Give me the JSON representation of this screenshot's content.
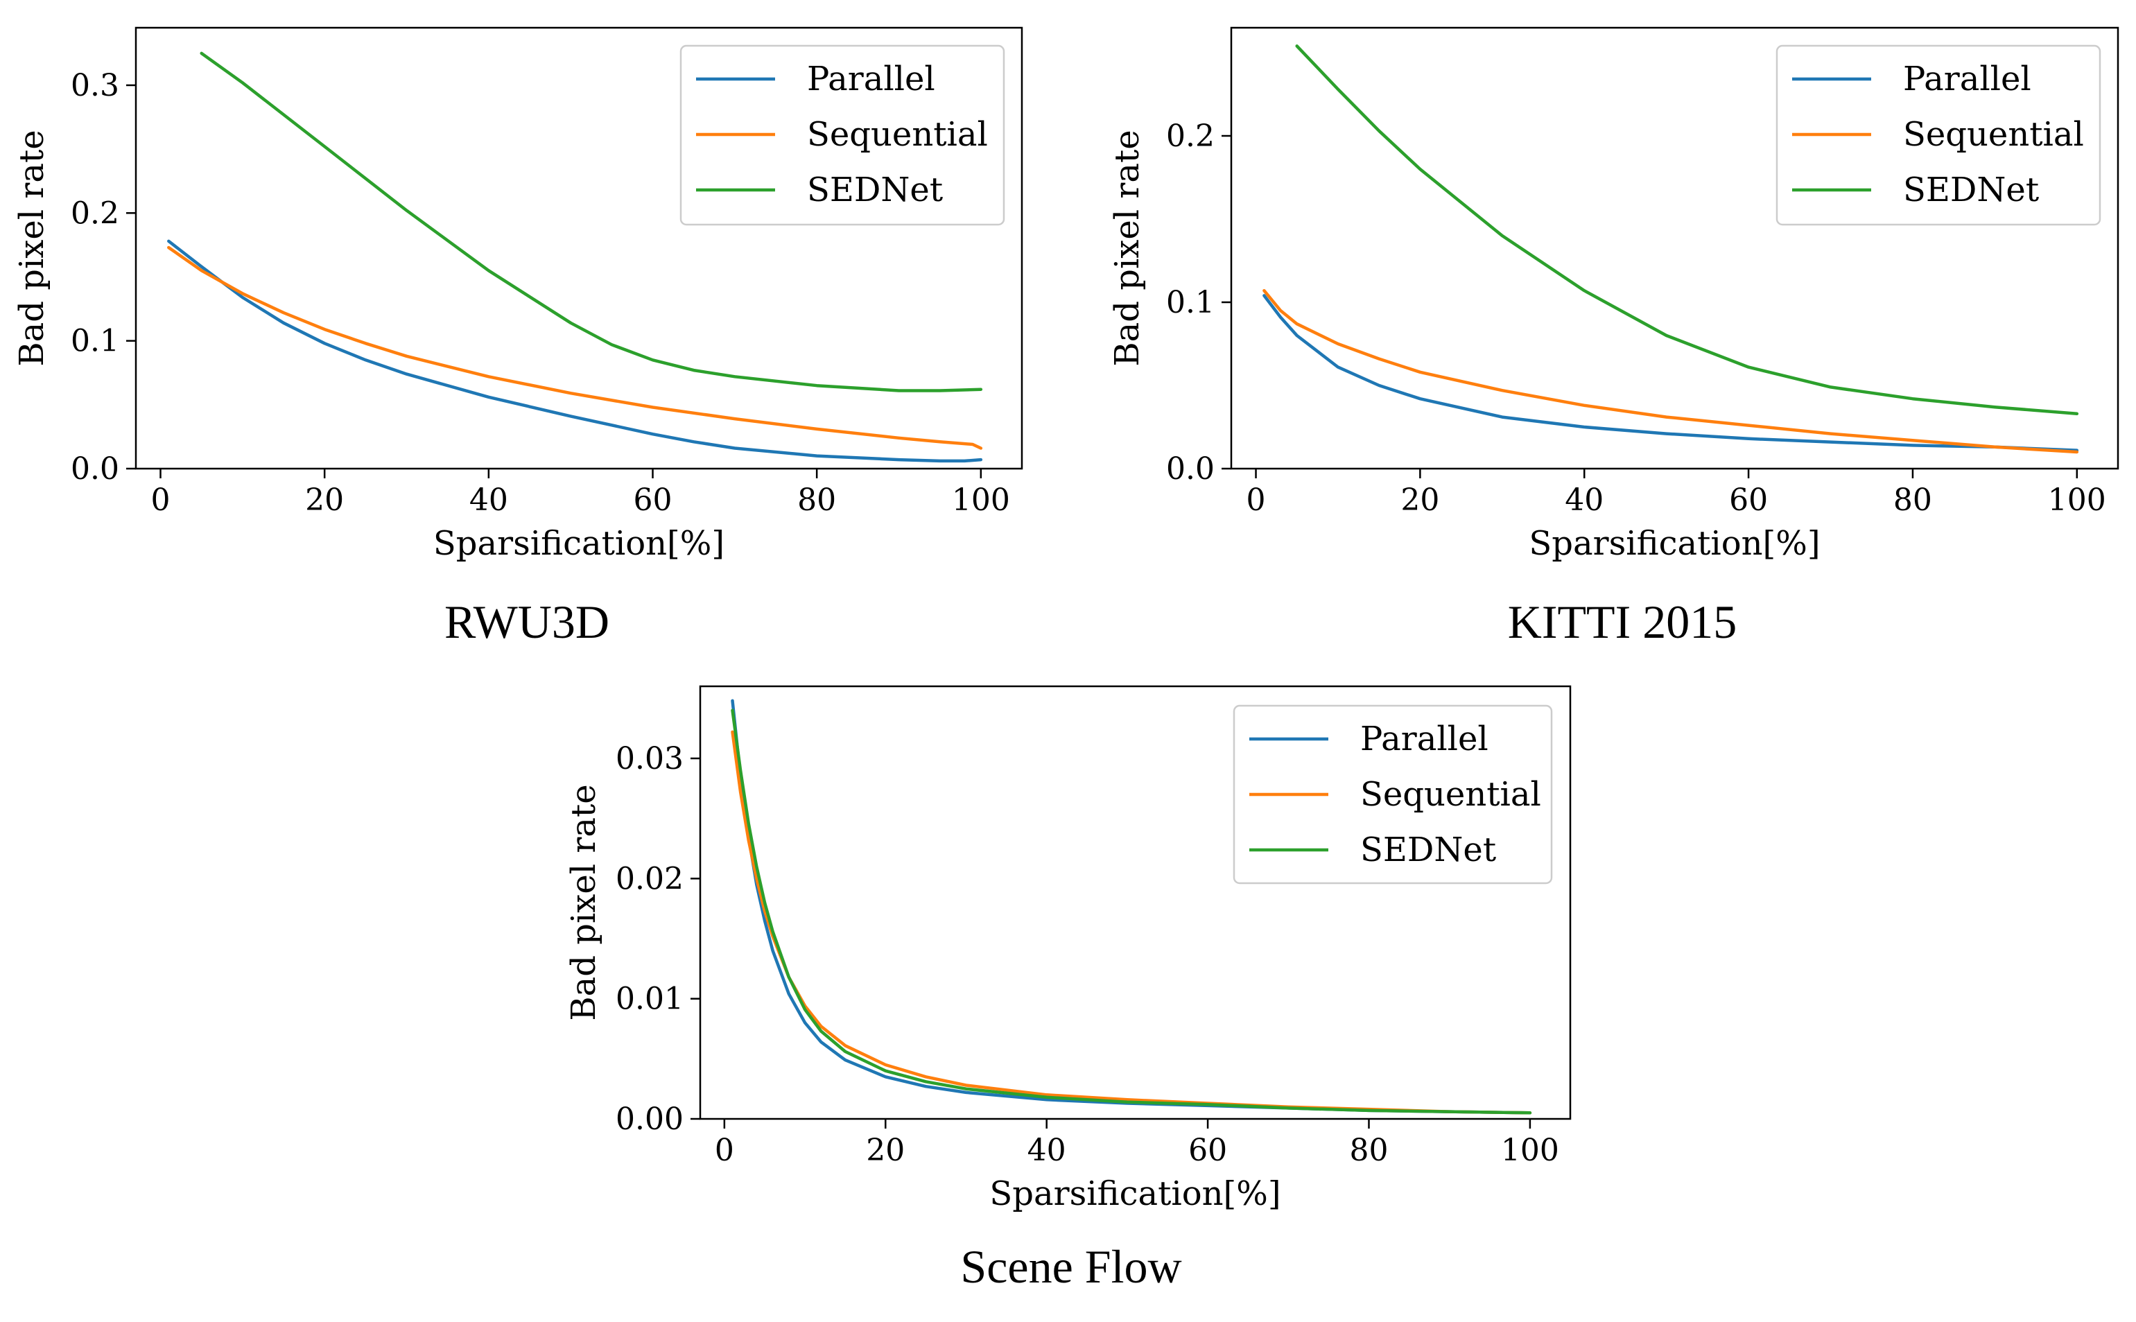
{
  "colors": {
    "Parallel": "#1f77b4",
    "Sequential": "#ff7f0e",
    "SEDNet": "#2ca02c"
  },
  "chart_data": [
    {
      "type": "line",
      "caption": "RWU3D",
      "xlabel": "Sparsification[%]",
      "ylabel": "Bad pixel rate",
      "xlim": [
        -3,
        105
      ],
      "ylim": [
        0,
        0.345
      ],
      "xticks": [
        0,
        20,
        40,
        60,
        80,
        100
      ],
      "xtick_labels": [
        "0",
        "20",
        "40",
        "60",
        "80",
        "100"
      ],
      "yticks": [
        0,
        0.1,
        0.2,
        0.3
      ],
      "ytick_labels": [
        "0.0",
        "0.1",
        "0.2",
        "0.3"
      ],
      "legend_position": "top-right",
      "series": [
        {
          "name": "Parallel",
          "x": [
            1,
            5,
            10,
            15,
            20,
            25,
            30,
            40,
            50,
            60,
            65,
            70,
            80,
            90,
            95,
            98,
            100
          ],
          "y": [
            0.178,
            0.158,
            0.134,
            0.114,
            0.098,
            0.085,
            0.074,
            0.056,
            0.041,
            0.027,
            0.021,
            0.016,
            0.01,
            0.007,
            0.006,
            0.006,
            0.007
          ]
        },
        {
          "name": "Sequential",
          "x": [
            1,
            5,
            10,
            15,
            20,
            25,
            30,
            40,
            50,
            60,
            70,
            80,
            90,
            95,
            99,
            100
          ],
          "y": [
            0.173,
            0.155,
            0.137,
            0.122,
            0.109,
            0.098,
            0.088,
            0.072,
            0.059,
            0.048,
            0.039,
            0.031,
            0.024,
            0.021,
            0.019,
            0.016
          ]
        },
        {
          "name": "SEDNet",
          "x": [
            5,
            10,
            20,
            30,
            40,
            50,
            55,
            60,
            65,
            70,
            80,
            90,
            95,
            100
          ],
          "y": [
            0.325,
            0.302,
            0.252,
            0.202,
            0.155,
            0.114,
            0.097,
            0.085,
            0.077,
            0.072,
            0.065,
            0.061,
            0.061,
            0.062
          ]
        }
      ]
    },
    {
      "type": "line",
      "caption": "KITTI 2015",
      "xlabel": "Sparsification[%]",
      "ylabel": "Bad pixel rate",
      "xlim": [
        -3,
        105
      ],
      "ylim": [
        0,
        0.265
      ],
      "xticks": [
        0,
        20,
        40,
        60,
        80,
        100
      ],
      "xtick_labels": [
        "0",
        "20",
        "40",
        "60",
        "80",
        "100"
      ],
      "yticks": [
        0,
        0.1,
        0.2
      ],
      "ytick_labels": [
        "0.0",
        "0.1",
        "0.2"
      ],
      "legend_position": "top-right",
      "series": [
        {
          "name": "Parallel",
          "x": [
            1,
            3,
            5,
            10,
            15,
            20,
            30,
            40,
            50,
            60,
            70,
            80,
            90,
            100
          ],
          "y": [
            0.104,
            0.091,
            0.08,
            0.061,
            0.05,
            0.042,
            0.031,
            0.025,
            0.021,
            0.018,
            0.016,
            0.014,
            0.013,
            0.011
          ]
        },
        {
          "name": "Sequential",
          "x": [
            1,
            3,
            5,
            10,
            15,
            20,
            30,
            40,
            50,
            60,
            70,
            80,
            90,
            100
          ],
          "y": [
            0.107,
            0.095,
            0.087,
            0.075,
            0.066,
            0.058,
            0.047,
            0.038,
            0.031,
            0.026,
            0.021,
            0.017,
            0.013,
            0.01
          ]
        },
        {
          "name": "SEDNet",
          "x": [
            5,
            10,
            15,
            20,
            30,
            40,
            50,
            60,
            70,
            80,
            90,
            100
          ],
          "y": [
            0.254,
            0.228,
            0.203,
            0.18,
            0.14,
            0.107,
            0.08,
            0.061,
            0.049,
            0.042,
            0.037,
            0.033
          ]
        }
      ]
    },
    {
      "type": "line",
      "caption": "Scene Flow",
      "xlabel": "Sparsification[%]",
      "ylabel": "Bad pixel rate",
      "xlim": [
        -3,
        105
      ],
      "ylim": [
        0,
        0.036
      ],
      "xticks": [
        0,
        20,
        40,
        60,
        80,
        100
      ],
      "xtick_labels": [
        "0",
        "20",
        "40",
        "60",
        "80",
        "100"
      ],
      "yticks": [
        0,
        0.01,
        0.02,
        0.03
      ],
      "ytick_labels": [
        "0.00",
        "0.01",
        "0.02",
        "0.03"
      ],
      "legend_position": "top-right",
      "series": [
        {
          "name": "Parallel",
          "x": [
            1,
            2,
            3,
            4,
            5,
            6,
            8,
            10,
            12,
            15,
            20,
            25,
            30,
            40,
            50,
            60,
            70,
            80,
            90,
            100
          ],
          "y": [
            0.0348,
            0.0285,
            0.0235,
            0.0195,
            0.0165,
            0.014,
            0.0104,
            0.008,
            0.0064,
            0.0049,
            0.0035,
            0.0027,
            0.0022,
            0.0016,
            0.0013,
            0.0011,
            0.0009,
            0.0007,
            0.0006,
            0.0005
          ]
        },
        {
          "name": "Sequential",
          "x": [
            1,
            2,
            3,
            4,
            5,
            6,
            8,
            10,
            12,
            15,
            20,
            25,
            30,
            40,
            50,
            60,
            70,
            80,
            90,
            100
          ],
          "y": [
            0.0322,
            0.0272,
            0.0232,
            0.02,
            0.0173,
            0.0152,
            0.0118,
            0.0094,
            0.0077,
            0.0061,
            0.0045,
            0.0035,
            0.0028,
            0.002,
            0.0016,
            0.0013,
            0.001,
            0.0008,
            0.0006,
            0.0005
          ]
        },
        {
          "name": "SEDNet",
          "x": [
            1,
            2,
            3,
            4,
            5,
            6,
            8,
            10,
            12,
            15,
            20,
            25,
            30,
            40,
            50,
            60,
            70,
            80,
            90,
            100
          ],
          "y": [
            0.034,
            0.029,
            0.0246,
            0.021,
            0.018,
            0.0156,
            0.0118,
            0.0091,
            0.0073,
            0.0056,
            0.004,
            0.0031,
            0.0025,
            0.0018,
            0.0014,
            0.0012,
            0.0009,
            0.0007,
            0.0006,
            0.0005
          ]
        }
      ]
    }
  ]
}
